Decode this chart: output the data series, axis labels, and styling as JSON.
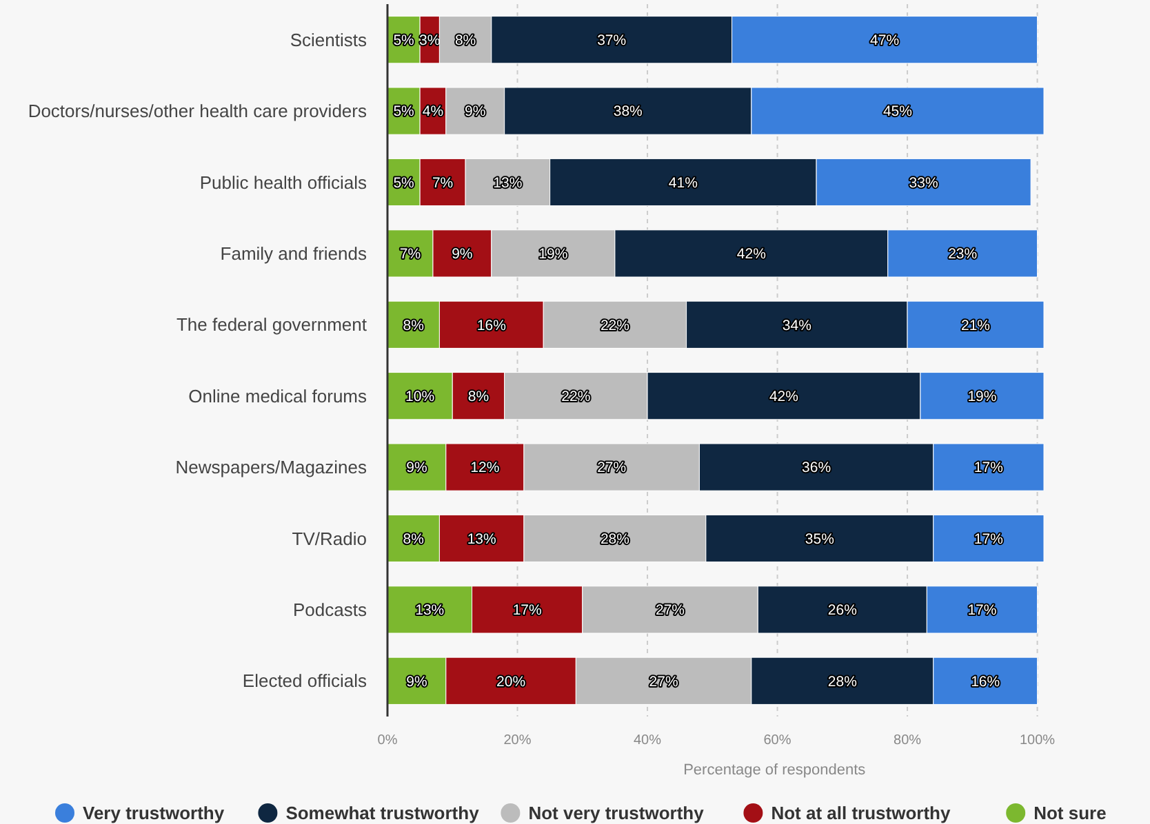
{
  "chart_data": {
    "type": "bar",
    "orientation": "horizontal",
    "stacked": true,
    "xlabel": "Percentage of respondents",
    "categories": [
      "Scientists",
      "Doctors/nurses/other health care providers",
      "Public health officials",
      "Family and friends",
      "The federal government",
      "Online medical forums",
      "Newspapers/Magazines",
      "TV/Radio",
      "Podcasts",
      "Elected officials"
    ],
    "series": [
      {
        "name": "Not sure",
        "color": "#7cb82f",
        "values": [
          5,
          5,
          5,
          7,
          8,
          10,
          9,
          8,
          13,
          9
        ],
        "value_labels": [
          "5%",
          "5%",
          "5%",
          "7%",
          "8%",
          "10%",
          "9%",
          "8%",
          "13%",
          "9%"
        ]
      },
      {
        "name": "Not at all trustworthy",
        "color": "#a30f15",
        "values": [
          3,
          4,
          7,
          9,
          16,
          8,
          12,
          13,
          17,
          20
        ],
        "value_labels": [
          "3%",
          "4%",
          "7%",
          "9%",
          "16%",
          "8%",
          "12%",
          "13%",
          "17%",
          "20%"
        ]
      },
      {
        "name": "Not very trustworthy",
        "color": "#bcbcbc",
        "values": [
          8,
          9,
          13,
          19,
          22,
          22,
          27,
          28,
          27,
          27
        ],
        "value_labels": [
          "8%",
          "9%",
          "13%",
          "19%",
          "22%",
          "22%",
          "27%",
          "28%",
          "27%",
          "27%"
        ]
      },
      {
        "name": "Somewhat trustworthy",
        "color": "#0f2741",
        "values": [
          37,
          38,
          41,
          42,
          34,
          42,
          36,
          35,
          26,
          28
        ],
        "value_labels": [
          "37%",
          "38%",
          "41%",
          "42%",
          "34%",
          "42%",
          "36%",
          "35%",
          "26%",
          "28%"
        ]
      },
      {
        "name": "Very trustworthy",
        "color": "#3a7fdc",
        "values": [
          47,
          45,
          33,
          23,
          21,
          19,
          17,
          17,
          17,
          16
        ],
        "value_labels": [
          "47%",
          "45%",
          "33%",
          "23%",
          "21%",
          "19%",
          "17%",
          "17%",
          "17%",
          "16%"
        ]
      }
    ],
    "xlim": [
      0,
      101
    ],
    "xticks": [
      {
        "value": 0,
        "label": "0%"
      },
      {
        "value": 20,
        "label": "20%"
      },
      {
        "value": 40,
        "label": "40%"
      },
      {
        "value": 60,
        "label": "60%"
      },
      {
        "value": 80,
        "label": "80%"
      },
      {
        "value": 100,
        "label": "100%"
      }
    ],
    "grid": "x",
    "legend": "bottom"
  }
}
